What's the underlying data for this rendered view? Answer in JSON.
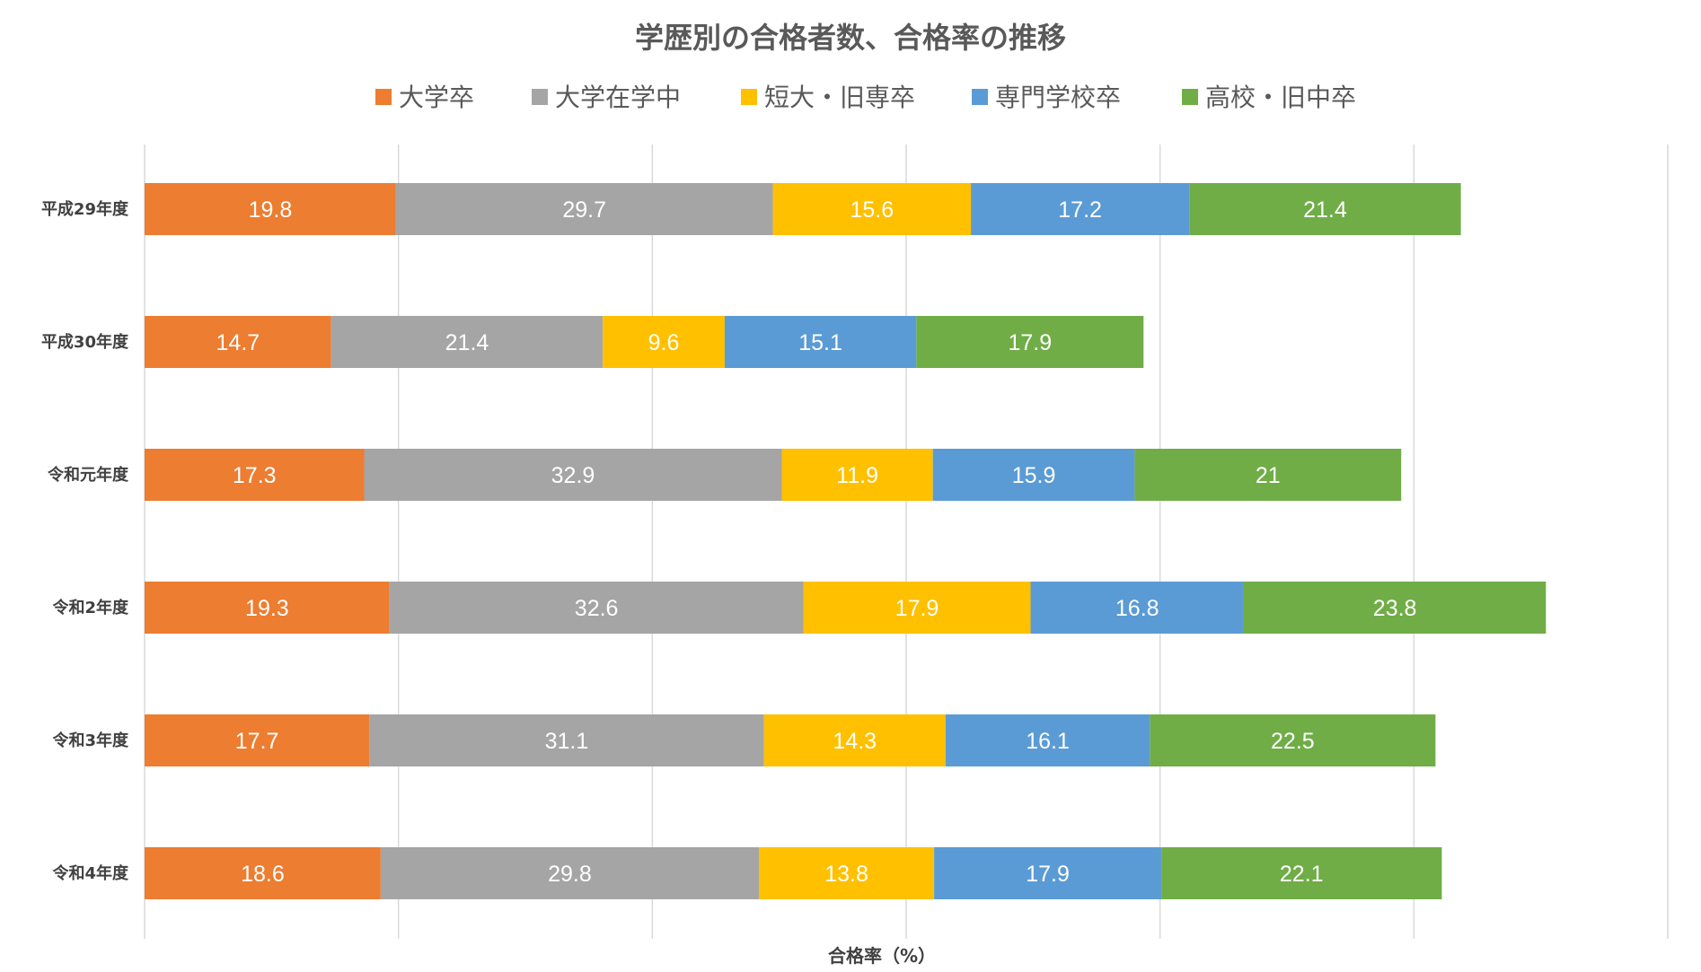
{
  "chart_data": {
    "type": "bar",
    "orientation": "horizontal",
    "stacked": true,
    "title": "学歴別の合格者数、合格率の推移",
    "xlabel": "合格率（%）",
    "ylabel": "",
    "xlim": [
      0,
      120
    ],
    "grid": true,
    "show_value_labels": true,
    "legend_position": "top",
    "categories": [
      "平成29年度",
      "平成30年度",
      "令和元年度",
      "令和2年度",
      "令和3年度",
      "令和4年度"
    ],
    "series": [
      {
        "name": "大学卒",
        "color": "#ED7D31",
        "values": [
          19.8,
          14.7,
          17.3,
          19.3,
          17.7,
          18.6
        ]
      },
      {
        "name": "大学在学中",
        "color": "#A5A5A5",
        "values": [
          29.7,
          21.4,
          32.9,
          32.6,
          31.1,
          29.8
        ]
      },
      {
        "name": "短大・旧専卒",
        "color": "#FFC000",
        "values": [
          15.6,
          9.6,
          11.9,
          17.9,
          14.3,
          13.8
        ]
      },
      {
        "name": "専門学校卒",
        "color": "#5B9BD5",
        "values": [
          17.2,
          15.1,
          15.9,
          16.8,
          16.1,
          17.9
        ]
      },
      {
        "name": "高校・旧中卒",
        "color": "#70AD47",
        "values": [
          21.4,
          17.9,
          21,
          23.8,
          22.5,
          22.1
        ]
      }
    ]
  }
}
